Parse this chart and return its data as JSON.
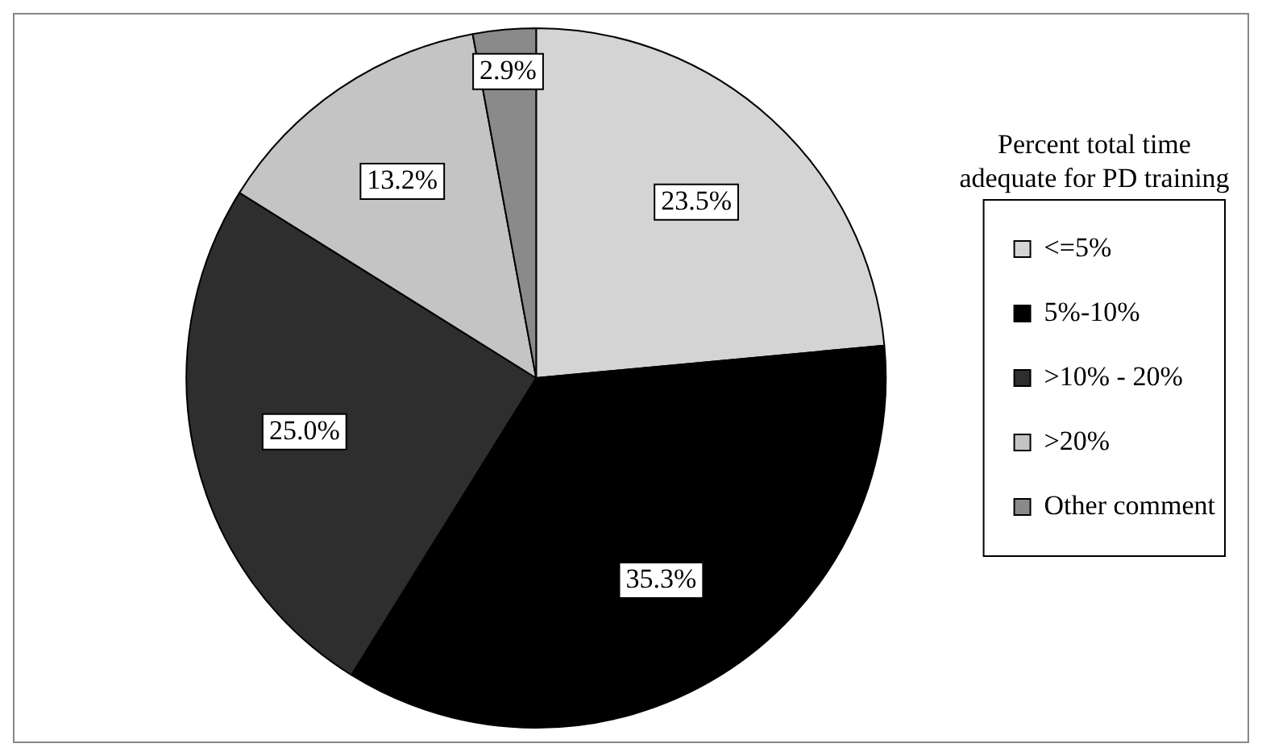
{
  "chart_data": {
    "type": "pie",
    "legend_title": "Percent total time adequate for PD training",
    "categories": [
      "<=5%",
      "5%-10%",
      ">10% - 20%",
      ">20%",
      "Other comment"
    ],
    "values": [
      23.5,
      35.3,
      25.0,
      13.2,
      2.9
    ],
    "colors": [
      "#d4d4d4",
      "#000000",
      "#2e2e2e",
      "#c4c4c4",
      "#8a8a8a"
    ],
    "value_labels": [
      "23.5%",
      "35.3%",
      "25.0%",
      "13.2%",
      "2.9%"
    ],
    "legend": "right"
  }
}
